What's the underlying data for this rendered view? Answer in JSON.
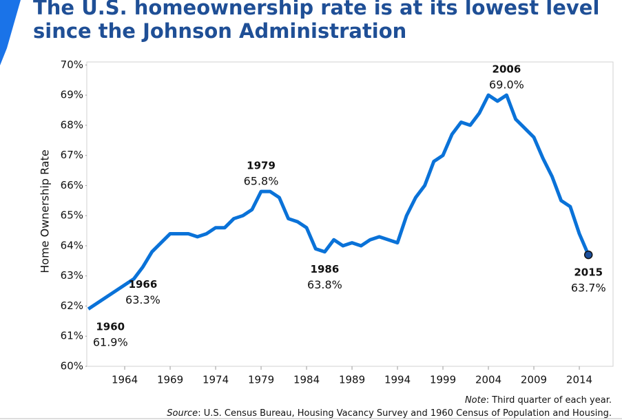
{
  "chart_data": {
    "type": "line",
    "title": "The U.S. homeownership rate is at its lowest level",
    "subtitle": "since the Johnson Administration",
    "y_label": "Home Ownership Rate",
    "x": [
      1960,
      1965,
      1966,
      1967,
      1968,
      1969,
      1970,
      1971,
      1972,
      1973,
      1974,
      1975,
      1976,
      1977,
      1978,
      1979,
      1980,
      1981,
      1982,
      1983,
      1984,
      1985,
      1986,
      1987,
      1988,
      1989,
      1990,
      1991,
      1992,
      1993,
      1994,
      1995,
      1996,
      1997,
      1998,
      1999,
      2000,
      2001,
      2002,
      2003,
      2004,
      2005,
      2006,
      2007,
      2008,
      2009,
      2010,
      2011,
      2012,
      2013,
      2014,
      2015
    ],
    "values": [
      61.9,
      62.9,
      63.3,
      63.8,
      64.1,
      64.4,
      64.4,
      64.4,
      64.3,
      64.4,
      64.6,
      64.6,
      64.9,
      65.0,
      65.2,
      65.8,
      65.8,
      65.6,
      64.9,
      64.8,
      64.6,
      63.9,
      63.8,
      64.2,
      64.0,
      64.1,
      64.0,
      64.2,
      64.3,
      64.2,
      64.1,
      65.0,
      65.6,
      66.0,
      66.8,
      67.0,
      67.7,
      68.1,
      68.0,
      68.4,
      69.0,
      68.8,
      69.0,
      68.2,
      67.9,
      67.6,
      66.9,
      66.3,
      65.5,
      65.3,
      64.4,
      63.7
    ],
    "value_labels": [
      "61.9%",
      null,
      "63.3%",
      null,
      null,
      null,
      null,
      null,
      null,
      null,
      null,
      null,
      null,
      null,
      null,
      "65.8%",
      null,
      null,
      null,
      null,
      null,
      null,
      "63.8%",
      null,
      null,
      null,
      null,
      null,
      null,
      null,
      null,
      null,
      null,
      null,
      null,
      null,
      null,
      null,
      null,
      null,
      null,
      null,
      "69.0%",
      null,
      null,
      null,
      null,
      null,
      null,
      null,
      null,
      "63.7%"
    ],
    "color": "#0a72d8",
    "marker_color": "#1c4f9c",
    "xlim": [
      1959.83,
      2017.71
    ],
    "xticks": [
      1964,
      1969,
      1974,
      1979,
      1984,
      1989,
      1994,
      1999,
      2004,
      2009,
      2014
    ],
    "ylim": [
      60,
      70.1
    ],
    "yticks": [
      {
        "value": 60,
        "label": "60%"
      },
      {
        "value": 61,
        "label": "61%"
      },
      {
        "value": 62,
        "label": "62%"
      },
      {
        "value": 63,
        "label": "63%"
      },
      {
        "value": 64,
        "label": "64%"
      },
      {
        "value": 65,
        "label": "65%"
      },
      {
        "value": 66,
        "label": "66%"
      },
      {
        "value": 67,
        "label": "67%"
      },
      {
        "value": 68,
        "label": "68%"
      },
      {
        "value": 69,
        "label": "69%"
      },
      {
        "value": 70,
        "label": "70%"
      }
    ],
    "grid": false,
    "note": {
      "label": "Note",
      "text": ": Third quarter of each year."
    },
    "source": {
      "label": "Source",
      "text": ": U.S. Census Bureau, Housing Vacancy Survey and 1960 Census of Population and Housing."
    }
  }
}
